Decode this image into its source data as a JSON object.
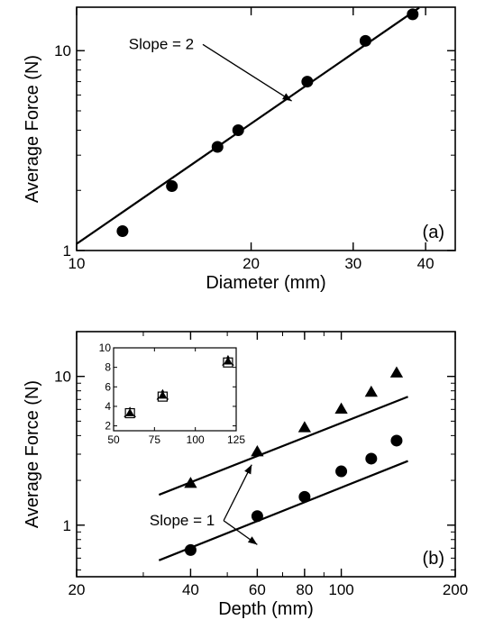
{
  "chart_data": [
    {
      "type": "scatter",
      "panel_label": "(a)",
      "xlabel": "Diameter (mm)",
      "ylabel": "Average Force (N)",
      "x_scale": "log",
      "y_scale": "log",
      "xlim": [
        10,
        45
      ],
      "ylim": [
        1,
        16.5
      ],
      "x_ticks": [
        10,
        20,
        30,
        40
      ],
      "y_ticks": [
        1,
        10
      ],
      "series": [
        {
          "marker": "circle",
          "points": [
            [
              12,
              1.25
            ],
            [
              14.6,
              2.1
            ],
            [
              17.5,
              3.3
            ],
            [
              19,
              4.0
            ],
            [
              25,
              7.0
            ],
            [
              31.5,
              11.2
            ],
            [
              38,
              15.2
            ]
          ]
        }
      ],
      "fit_lines": [
        {
          "points": [
            [
              10,
              1.08
            ],
            [
              39,
              16.4
            ]
          ]
        }
      ],
      "annotations": [
        {
          "text": "Slope = 2",
          "from": [
            14,
            10.2
          ],
          "to": [
            23.5,
            5.6
          ]
        }
      ]
    },
    {
      "type": "scatter",
      "panel_label": "(b)",
      "xlabel": "Depth (mm)",
      "ylabel": "Average Force (N)",
      "x_scale": "log",
      "y_scale": "log",
      "xlim": [
        20,
        200
      ],
      "ylim": [
        0.45,
        20
      ],
      "x_ticks": [
        20,
        40,
        60,
        80,
        100,
        200
      ],
      "y_ticks": [
        1,
        10
      ],
      "series": [
        {
          "marker": "triangle",
          "points": [
            [
              40,
              1.9
            ],
            [
              60,
              3.1
            ],
            [
              80,
              4.5
            ],
            [
              100,
              6.0
            ],
            [
              120,
              7.8
            ],
            [
              140,
              10.5
            ]
          ]
        },
        {
          "marker": "circle",
          "points": [
            [
              40,
              0.68
            ],
            [
              60,
              1.15
            ],
            [
              80,
              1.55
            ],
            [
              100,
              2.3
            ],
            [
              120,
              2.8
            ],
            [
              140,
              3.7
            ]
          ]
        }
      ],
      "fit_lines": [
        {
          "points": [
            [
              33,
              1.6
            ],
            [
              150,
              7.3
            ]
          ]
        },
        {
          "points": [
            [
              33,
              0.58
            ],
            [
              150,
              2.7
            ]
          ]
        }
      ],
      "annotations": [
        {
          "text": "Slope = 1",
          "from": [
            38,
            1.0
          ],
          "targets": [
            [
              58,
              2.55
            ],
            [
              60,
              0.74
            ]
          ]
        }
      ],
      "inset": {
        "type": "scatter",
        "x_scale": "linear",
        "y_scale": "linear",
        "xlim": [
          50,
          125
        ],
        "ylim": [
          1.5,
          10
        ],
        "x_ticks": [
          50,
          75,
          100,
          125
        ],
        "y_ticks": [
          2,
          4,
          6,
          8,
          10
        ],
        "series": [
          {
            "marker": "triangle",
            "points": [
              [
                60,
                3.3
              ],
              [
                80,
                5.1
              ],
              [
                120,
                8.6
              ]
            ]
          },
          {
            "marker": "open-square",
            "points": [
              [
                60,
                3.3
              ],
              [
                80,
                5.0
              ],
              [
                120,
                8.5
              ]
            ]
          }
        ]
      }
    }
  ]
}
